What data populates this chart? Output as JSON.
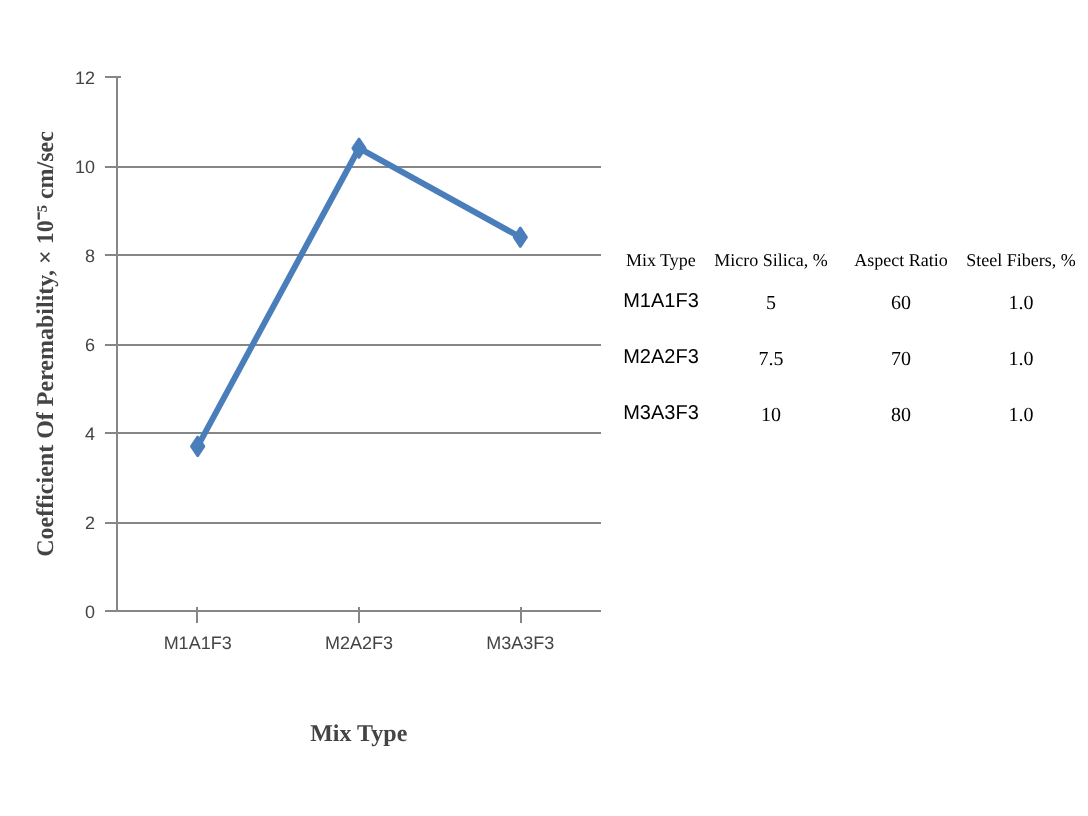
{
  "chart_data": {
    "type": "line",
    "xlabel": "Mix Type",
    "ylabel": "Coefficient Of Peremability, × 10⁻⁵ cm/sec",
    "categories": [
      "M1A1F3",
      "M2A2F3",
      "M3A3F3"
    ],
    "series": [
      {
        "color": "#4a7ebb",
        "values": [
          3.7,
          10.4,
          8.4
        ]
      }
    ],
    "ylim": [
      0,
      12
    ],
    "yticks": [
      0,
      2,
      4,
      6,
      8,
      10,
      12
    ],
    "grid": "y",
    "marker": "diamond",
    "line_style": "solid",
    "annotations": [
      "Mix Type",
      "Micro Silica, %",
      "Aspect Ratio",
      "Steel Fibers, %",
      "M1A1F3",
      "5",
      "60",
      "1.0",
      "M2A2F3",
      "7.5",
      "70",
      "1.0",
      "M3A3F3",
      "10",
      "80",
      "1.0"
    ]
  }
}
